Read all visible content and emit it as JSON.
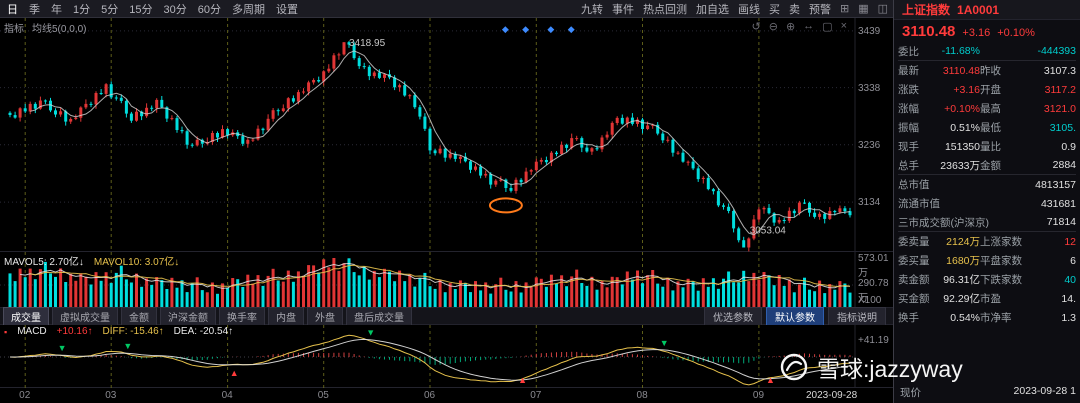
{
  "colors": {
    "up": "#e13535",
    "down": "#00dede",
    "grid_v": "#6e6e1e",
    "grid_h": "#2a2a36",
    "ma5": "#d8d8d8",
    "mavol5": "#e8e8e8",
    "mavol10": "#e6c14c",
    "diff": "#e6c14c",
    "dea": "#e8e8e8",
    "hist_up": "#d04040",
    "hist_dn": "#00a878",
    "buy_arrow": "#ff3b3b",
    "sell_arrow": "#00c864",
    "blue_diamond": "#3d8bff",
    "orange": "#ff7a1a",
    "annotation": "#c8c8c8"
  },
  "toolbar": {
    "periods": [
      "日",
      "季",
      "年",
      "1分",
      "5分",
      "15分",
      "30分",
      "60分",
      "多周期",
      "设置"
    ],
    "tools": [
      "九转",
      "事件",
      "热点回测",
      "加自选",
      "画线",
      "买",
      "卖",
      "预警"
    ],
    "icons": [
      {
        "name": "grid-layout-icon",
        "glyph": "⊞"
      },
      {
        "name": "multi-window-icon",
        "glyph": "▦"
      },
      {
        "name": "sidebar-icon",
        "glyph": "◫"
      }
    ]
  },
  "chart_header": {
    "indicator": "指标",
    "ma_label": "均线5(0,0,0)"
  },
  "chart_icons": [
    {
      "name": "refresh-icon",
      "glyph": "↺"
    },
    {
      "name": "zoom-out-icon",
      "glyph": "⊖"
    },
    {
      "name": "zoom-in-icon",
      "glyph": "⊕"
    },
    {
      "name": "horizontal-expand-icon",
      "glyph": "↔"
    },
    {
      "name": "maximize-icon",
      "glyph": "▢"
    },
    {
      "name": "close-icon",
      "glyph": "×"
    }
  ],
  "volume": {
    "label5": "MAVOL5: 2.70亿↓",
    "label10": "MAVOL10: 3.07亿↓",
    "y_top": "573.01万",
    "y_mid": "290.78万",
    "y_unit": "X100"
  },
  "tabs": {
    "items": [
      "成交量",
      "虚拟成交量",
      "金额",
      "沪深金额",
      "换手率",
      "内盘",
      "外盘",
      "盘后成交量"
    ],
    "active_index": 0,
    "param_buttons": [
      "优选参数",
      "默认参数",
      "指标说明"
    ],
    "active_param": 1
  },
  "macd": {
    "icon": "▪",
    "name": "MACD",
    "value": "+10.16↑",
    "diff_label": "DIFF: -15.46↑",
    "dea_label": "DEA: -20.54↑",
    "y_top": "+41.19"
  },
  "xaxis": {
    "months": [
      "02",
      "03",
      "04",
      "05",
      "06",
      "07",
      "08",
      "09"
    ],
    "date": "2023-09-28"
  },
  "quote": {
    "title": "上证指数",
    "code": "1A0001",
    "price": "3110.48",
    "change": "+3.16",
    "pct": "+0.10%",
    "rows": [
      {
        "sep": true,
        "cells": [
          {
            "l": "委比",
            "v": "-11.68%",
            "c": "g"
          },
          {
            "l": "",
            "v": "-444393",
            "c": "g"
          }
        ]
      },
      {
        "cells": [
          {
            "l": "最新",
            "v": "3110.48",
            "c": "r"
          },
          {
            "l": "昨收",
            "v": "3107.3",
            "c": "w"
          }
        ]
      },
      {
        "cells": [
          {
            "l": "涨跌",
            "v": "+3.16",
            "c": "r"
          },
          {
            "l": "开盘",
            "v": "3117.2",
            "c": "r"
          }
        ]
      },
      {
        "cells": [
          {
            "l": "涨幅",
            "v": "+0.10%",
            "c": "r"
          },
          {
            "l": "最高",
            "v": "3121.0",
            "c": "r"
          }
        ]
      },
      {
        "cells": [
          {
            "l": "振幅",
            "v": "0.51%",
            "c": "w"
          },
          {
            "l": "最低",
            "v": "3105.",
            "c": "g"
          }
        ]
      },
      {
        "cells": [
          {
            "l": "现手",
            "v": "151350",
            "c": "w"
          },
          {
            "l": "量比",
            "v": "0.9",
            "c": "w"
          }
        ]
      },
      {
        "sep": true,
        "cells": [
          {
            "l": "总手",
            "v": "23633万",
            "c": "w"
          },
          {
            "l": "金额",
            "v": "2884",
            "c": "w"
          }
        ]
      },
      {
        "wide": true,
        "cells": [
          {
            "l": "总市值",
            "v": "4813157",
            "c": "w"
          }
        ]
      },
      {
        "wide": true,
        "cells": [
          {
            "l": "流通市值",
            "v": "431681",
            "c": "w"
          }
        ]
      },
      {
        "wide": true,
        "sep": true,
        "cells": [
          {
            "l": "三市成交额(沪深京)",
            "v": "71814",
            "c": "w"
          }
        ]
      },
      {
        "cells": [
          {
            "l": "委卖量",
            "v": "2124万",
            "c": "y"
          },
          {
            "l": "上涨家数",
            "v": "12",
            "c": "r"
          }
        ]
      },
      {
        "cells": [
          {
            "l": "委买量",
            "v": "1680万",
            "c": "y"
          },
          {
            "l": "平盘家数",
            "v": "6",
            "c": "w"
          }
        ]
      },
      {
        "cells": [
          {
            "l": "卖金额",
            "v": "96.31亿",
            "c": "w"
          },
          {
            "l": "下跌家数",
            "v": "40",
            "c": "g"
          }
        ]
      },
      {
        "cells": [
          {
            "l": "买金额",
            "v": "92.29亿",
            "c": "w"
          },
          {
            "l": "市盈",
            "v": "14.",
            "c": "w"
          }
        ]
      },
      {
        "cells": [
          {
            "l": "换手",
            "v": "0.54%",
            "c": "w"
          },
          {
            "l": "市净率",
            "v": "1.3",
            "c": "w"
          }
        ]
      }
    ],
    "footer": {
      "label": "现价",
      "date": "2023-09-28 1"
    }
  },
  "watermark": {
    "text": "雪球:jazzyway"
  },
  "chart_data": {
    "type": "candlestick",
    "symbol": "上证指数 1A0001",
    "period": "日K 2023-02 至 2023-09-28",
    "days": 167,
    "price_range": [
      3045,
      3462
    ],
    "y_ticks": [
      3439,
      3338,
      3236,
      3134
    ],
    "month_start_days": [
      3,
      20,
      43,
      62,
      83,
      104,
      125,
      148
    ],
    "close_waypoints": [
      [
        0,
        3285
      ],
      [
        6,
        3312
      ],
      [
        12,
        3280
      ],
      [
        19,
        3338
      ],
      [
        24,
        3285
      ],
      [
        29,
        3310
      ],
      [
        36,
        3232
      ],
      [
        42,
        3262
      ],
      [
        47,
        3238
      ],
      [
        53,
        3300
      ],
      [
        58,
        3335
      ],
      [
        62,
        3360
      ],
      [
        66,
        3418.95
      ],
      [
        70,
        3370
      ],
      [
        75,
        3352
      ],
      [
        80,
        3310
      ],
      [
        83,
        3230
      ],
      [
        88,
        3215
      ],
      [
        95,
        3172
      ],
      [
        99,
        3160
      ],
      [
        103,
        3195
      ],
      [
        107,
        3215
      ],
      [
        111,
        3245
      ],
      [
        115,
        3225
      ],
      [
        120,
        3280
      ],
      [
        124,
        3275
      ],
      [
        128,
        3260
      ],
      [
        133,
        3210
      ],
      [
        138,
        3160
      ],
      [
        142,
        3110
      ],
      [
        145,
        3053.04
      ],
      [
        148,
        3125
      ],
      [
        152,
        3095
      ],
      [
        156,
        3130
      ],
      [
        160,
        3108
      ],
      [
        163,
        3120
      ],
      [
        166,
        3110.48
      ]
    ],
    "pin_days": [
      66,
      145,
      166
    ],
    "wiggle": [
      4,
      -5,
      7,
      -3,
      6,
      -7,
      3,
      8,
      -4,
      -6,
      5,
      -8,
      2,
      -4,
      6
    ],
    "high_ext": [
      3,
      6,
      2,
      8,
      4,
      3,
      7,
      2,
      5,
      4,
      6,
      3
    ],
    "low_ext": [
      4,
      2,
      7,
      3,
      5,
      8,
      2,
      6,
      3,
      5,
      4,
      7
    ],
    "volume_waypoints": [
      [
        0,
        62
      ],
      [
        8,
        78
      ],
      [
        15,
        55
      ],
      [
        22,
        68
      ],
      [
        30,
        48
      ],
      [
        40,
        42
      ],
      [
        50,
        58
      ],
      [
        58,
        72
      ],
      [
        64,
        92
      ],
      [
        70,
        75
      ],
      [
        78,
        60
      ],
      [
        85,
        48
      ],
      [
        92,
        40
      ],
      [
        100,
        45
      ],
      [
        106,
        52
      ],
      [
        112,
        60
      ],
      [
        118,
        48
      ],
      [
        124,
        66
      ],
      [
        130,
        52
      ],
      [
        136,
        44
      ],
      [
        142,
        56
      ],
      [
        146,
        70
      ],
      [
        150,
        58
      ],
      [
        156,
        42
      ],
      [
        160,
        46
      ],
      [
        166,
        40
      ]
    ],
    "vol_wiggle": [
      8,
      -10,
      14,
      -6,
      10,
      -14,
      5,
      18,
      -8,
      -12,
      9,
      -16,
      4,
      -7,
      12
    ],
    "event_diamond_days": [
      98,
      102,
      107,
      111
    ],
    "highlight_ellipse": {
      "day": 98,
      "price": 3128
    },
    "high_label": {
      "day": 66,
      "price": 3418.95,
      "text": "3418.95"
    },
    "low_label": {
      "day": 145,
      "price": 3053.04,
      "text": "3053.04"
    }
  }
}
